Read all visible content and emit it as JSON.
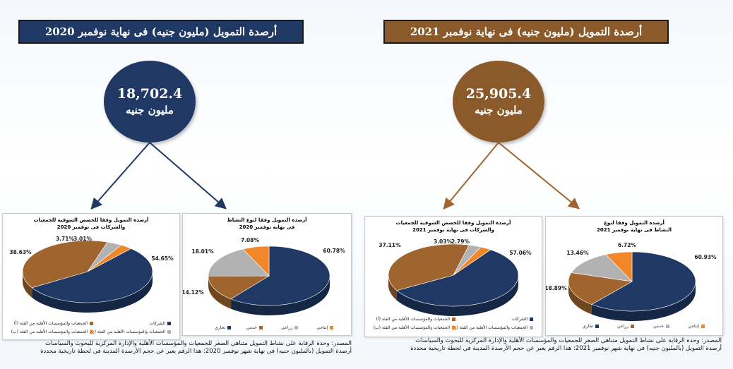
{
  "titles": {
    "y2020": "أرصدة التمويل (مليون جنيه) فى نهاية نوفمبر 2020",
    "y2021": "أرصدة التمويل (مليون جنيه) فى نهاية نوفمبر 2021"
  },
  "totals": {
    "y2020": {
      "value": "18,702.4",
      "unit": "مليون جنيه"
    },
    "y2021": {
      "value": "25,905.4",
      "unit": "مليون جنيه"
    }
  },
  "chart_data": [
    {
      "type": "pie",
      "id": "share-2020",
      "title": "أرصدة التمويل وفقا للحصص السوقية للجمعيات والشركات فى نوفمبر 2020",
      "categories": [
        "الشركات",
        "الجمعيات والمؤسسات الأهلية من الفئة (أ)",
        "الجمعيات والمؤسسات الأهلية من الفئة (ب)",
        "الجمعيات والمؤسسات الأهلية من الفئة (ج)"
      ],
      "values": [
        54.65,
        38.63,
        3.71,
        3.01
      ],
      "labels": [
        "54.65%",
        "38.63%",
        "3.71%",
        "3.01%"
      ],
      "colors": [
        "#1f3864",
        "#a0642e",
        "#b2b2b2",
        "#f0872a"
      ]
    },
    {
      "type": "pie",
      "id": "activity-2020",
      "title": "أرصدة التمويل وفقا لنوع النشاط فى نهاية نوفمبر 2020",
      "categories": [
        "تجاري",
        "خدمي",
        "زراعي",
        "إنتاجي"
      ],
      "values": [
        60.78,
        14.12,
        18.01,
        7.08
      ],
      "labels": [
        "60.78%",
        "14.12%",
        "18.01%",
        "7.08%"
      ],
      "colors": [
        "#1f3864",
        "#a0642e",
        "#b2b2b2",
        "#f0872a"
      ]
    },
    {
      "type": "pie",
      "id": "share-2021",
      "title": "أرصدة التمويل وفقا للحصص السوقية للجمعيات والشركات فى نهاية نوفمبر 2021",
      "categories": [
        "الشركات",
        "الجمعيات والمؤسسات الأهلية من الفئة (أ)",
        "الجمعيات والمؤسسات الأهلية من الفئة (ب)",
        "الجمعيات والمؤسسات الأهلية من الفئة (ج)"
      ],
      "values": [
        57.06,
        37.11,
        3.03,
        2.79
      ],
      "labels": [
        "57.06%",
        "37.11%",
        "3.03%",
        "2.79%"
      ],
      "colors": [
        "#1f3864",
        "#a0642e",
        "#b2b2b2",
        "#f0872a"
      ]
    },
    {
      "type": "pie",
      "id": "activity-2021",
      "title": "أرصدة التمويل وفقا لنوع النشاط فى نهاية نوفمبر 2021",
      "categories": [
        "تجاري",
        "زراعي",
        "خدمي",
        "إنتاجي"
      ],
      "values": [
        60.93,
        18.89,
        13.46,
        6.72
      ],
      "labels": [
        "60.93%",
        "18.89%",
        "13.46%",
        "6.72%"
      ],
      "colors": [
        "#1f3864",
        "#a0642e",
        "#b2b2b2",
        "#f0872a"
      ]
    }
  ],
  "sources": {
    "y2020": [
      "المصدر: وحدة الرقابة على نشاط التمويل متناهى الصغر للجمعيات والمؤسسات الأهلية والإدارة المركزية للبحوث والسياسات",
      "أرصدة التمويل (بالمليون جنيه) فى نهاية شهر نوفمبر 2020: هذا الرقم يعبر عن حجم الأرصدة المدينة فى لحظة تاريخية محددة"
    ],
    "y2021": [
      "المصدر: وحدة الرقابة على نشاط التمويل متناهى الصغر للجمعيات والمؤسسات الأهلية والإدارة المركزية للبحوث والسياسات",
      "أرصدة التمويل (بالمليون جنيه) فى نهاية شهر نوفمبر 2021: هذا الرقم يعبر عن حجم الأرصدة المدينة فى لحظة تاريخية محددة"
    ]
  }
}
